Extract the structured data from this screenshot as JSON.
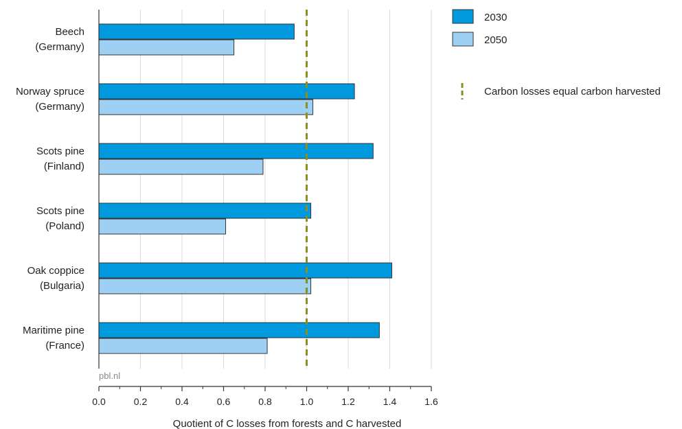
{
  "chart_data": {
    "type": "bar",
    "orientation": "horizontal",
    "categories": [
      [
        "Beech",
        "(Germany)"
      ],
      [
        "Norway spruce",
        "(Germany)"
      ],
      [
        "Scots pine",
        "(Finland)"
      ],
      [
        "Scots pine",
        "(Poland)"
      ],
      [
        "Oak coppice",
        "(Bulgaria)"
      ],
      [
        "Maritime pine",
        "(France)"
      ]
    ],
    "series": [
      {
        "name": "2030",
        "color": "#0099dd",
        "values": [
          0.94,
          1.23,
          1.32,
          1.02,
          1.41,
          1.35
        ]
      },
      {
        "name": "2050",
        "color": "#9dd0f3",
        "values": [
          0.65,
          1.03,
          0.79,
          0.61,
          1.02,
          0.81
        ]
      }
    ],
    "reference_line": {
      "value": 1.0,
      "label": "Carbon losses equal carbon harvested",
      "color": "#8a8f1f",
      "style": "dashed"
    },
    "xlabel": "Quotient of C losses from forests and C harvested",
    "ylabel": "",
    "xlim": [
      0,
      1.6
    ],
    "xticks": [
      "0.0",
      "0.2",
      "0.4",
      "0.6",
      "0.8",
      "1.0",
      "1.2",
      "1.4",
      "1.6"
    ],
    "grid": "vertical",
    "legend_position": "top-right",
    "source": "pbl.nl"
  }
}
